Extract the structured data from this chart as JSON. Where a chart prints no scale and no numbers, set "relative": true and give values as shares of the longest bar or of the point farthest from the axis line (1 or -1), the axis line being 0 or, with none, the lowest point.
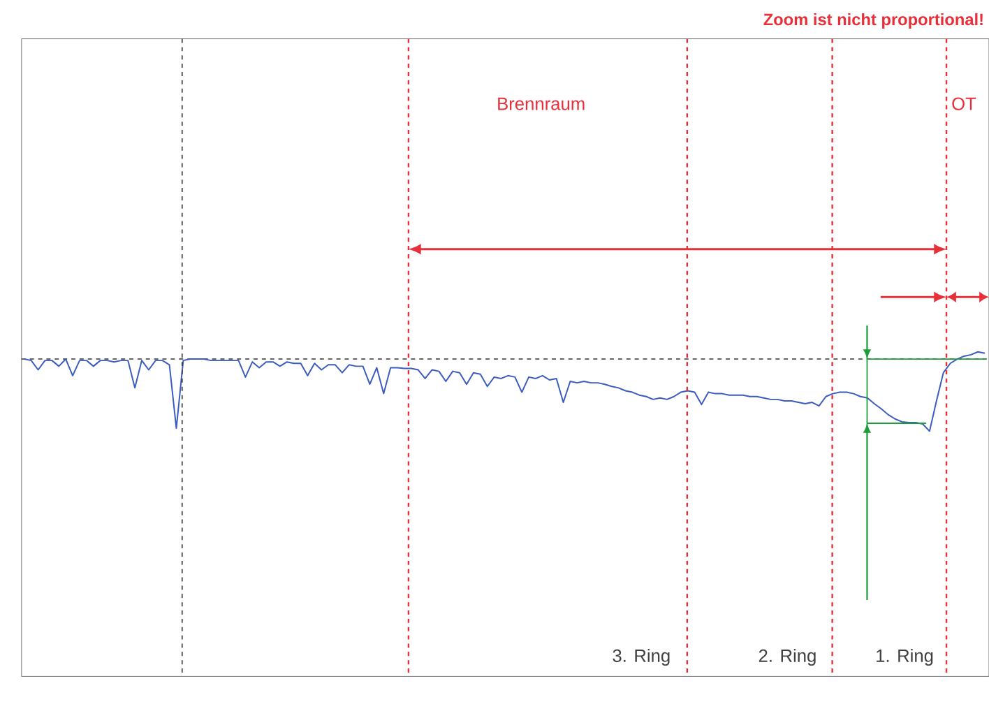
{
  "chart_data": {
    "type": "line",
    "relative": true,
    "tick_labels": false,
    "annotations": [
      "Zoom ist nicht proportional!",
      "Brennraum",
      "OT",
      "3. Ring",
      "2. Ring",
      "1. Ring"
    ],
    "categories": [
      null,
      null,
      null,
      null,
      null,
      null,
      null,
      null,
      null,
      null,
      null,
      null,
      null,
      null,
      null,
      null,
      null,
      null,
      null,
      null,
      null,
      null,
      null,
      null,
      null,
      null,
      null,
      null,
      null,
      null,
      null,
      null,
      null,
      null,
      null,
      null,
      null,
      null,
      null,
      null,
      null,
      null,
      null,
      null,
      null,
      null,
      null,
      null,
      null,
      null,
      null,
      null,
      null,
      null,
      null,
      null,
      null,
      null,
      null,
      null,
      null,
      null,
      null,
      null,
      null,
      null,
      null,
      null,
      null,
      null,
      null,
      null,
      null,
      null,
      null,
      null,
      null,
      null,
      null,
      null,
      null,
      null,
      null,
      null,
      null,
      null,
      null,
      null,
      null,
      null,
      null,
      null,
      null,
      null,
      null,
      null,
      null,
      null,
      null,
      null,
      null,
      null,
      null,
      null,
      null,
      null,
      null,
      null,
      null,
      null,
      null,
      null,
      null,
      null,
      null,
      null,
      null,
      null,
      null,
      null,
      null,
      null,
      null,
      null,
      null,
      null,
      null,
      null,
      null,
      null,
      null,
      null,
      null,
      null,
      null,
      null,
      null,
      null,
      null,
      null
    ],
    "series": [
      {
        "color": "#3a5bbf",
        "values": [
          0,
          -0.02,
          -0.15,
          -0.02,
          -0.02,
          -0.1,
          0,
          -0.23,
          -0.02,
          -0.02,
          -0.1,
          -0.02,
          -0.02,
          -0.04,
          -0.02,
          -0.02,
          -0.4,
          -0.02,
          -0.15,
          -0.02,
          -0.02,
          -0.08,
          -0.96,
          -0.02,
          0,
          0,
          0,
          -0.02,
          -0.02,
          -0.02,
          -0.02,
          -0.02,
          -0.25,
          -0.04,
          -0.12,
          -0.04,
          -0.04,
          -0.1,
          -0.04,
          -0.06,
          -0.06,
          -0.23,
          -0.06,
          -0.15,
          -0.08,
          -0.08,
          -0.19,
          -0.08,
          -0.1,
          -0.1,
          -0.35,
          -0.12,
          -0.48,
          -0.12,
          -0.12,
          -0.13,
          -0.13,
          -0.15,
          -0.27,
          -0.15,
          -0.17,
          -0.31,
          -0.17,
          -0.19,
          -0.35,
          -0.19,
          -0.21,
          -0.38,
          -0.25,
          -0.27,
          -0.23,
          -0.25,
          -0.46,
          -0.25,
          -0.27,
          -0.23,
          -0.29,
          -0.27,
          -0.6,
          -0.31,
          -0.33,
          -0.31,
          -0.33,
          -0.33,
          -0.35,
          -0.38,
          -0.4,
          -0.44,
          -0.46,
          -0.5,
          -0.52,
          -0.56,
          -0.54,
          -0.56,
          -0.52,
          -0.46,
          -0.44,
          -0.46,
          -0.63,
          -0.46,
          -0.48,
          -0.48,
          -0.5,
          -0.5,
          -0.5,
          -0.52,
          -0.52,
          -0.54,
          -0.56,
          -0.56,
          -0.58,
          -0.58,
          -0.6,
          -0.62,
          -0.6,
          -0.65,
          -0.52,
          -0.48,
          -0.46,
          -0.46,
          -0.48,
          -0.52,
          -0.54,
          -0.62,
          -0.69,
          -0.77,
          -0.83,
          -0.87,
          -0.88,
          -0.88,
          -0.9,
          -1,
          -0.58,
          -0.19,
          -0.06,
          0,
          0.04,
          0.06,
          0.1,
          0.08
        ]
      }
    ],
    "ref_lines": [
      {
        "axis": "y",
        "value": 0,
        "color": "#333333",
        "line_style": "dashed"
      }
    ]
  }
}
